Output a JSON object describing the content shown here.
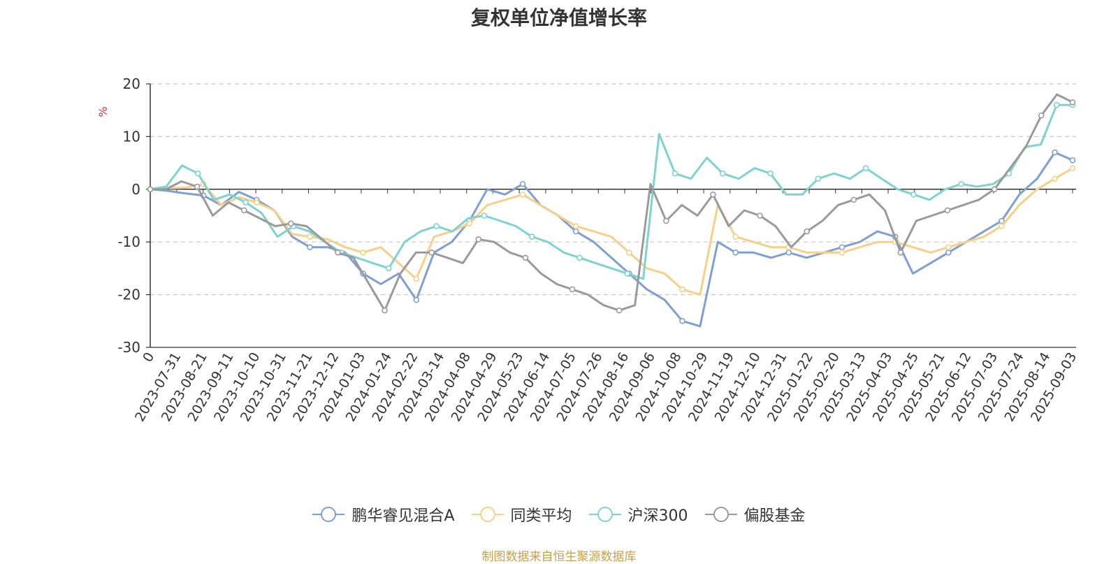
{
  "chart_data": {
    "type": "line",
    "title": "复权单位净值增长率",
    "ylabel": "%",
    "ylim": [
      -30,
      20
    ],
    "yticks": [
      20,
      10,
      0,
      -10,
      -20,
      -30
    ],
    "xlabel_first": "0",
    "xticks": [
      "2023-07-31",
      "2023-08-21",
      "2023-09-11",
      "2023-10-10",
      "2023-10-31",
      "2023-11-21",
      "2023-12-12",
      "2024-01-03",
      "2024-01-24",
      "2024-02-22",
      "2024-03-14",
      "2024-04-08",
      "2024-04-29",
      "2024-05-23",
      "2024-06-14",
      "2024-07-05",
      "2024-07-26",
      "2024-08-16",
      "2024-09-06",
      "2024-10-08",
      "2024-10-29",
      "2024-11-19",
      "2024-12-10",
      "2024-12-31",
      "2025-01-22",
      "2025-02-20",
      "2025-03-13",
      "2025-04-03",
      "2025-04-25",
      "2025-05-21",
      "2025-06-12",
      "2025-07-03",
      "2025-07-24",
      "2025-08-14",
      "2025-09-03"
    ],
    "grid": true,
    "legend_position": "bottom",
    "series": [
      {
        "name": "鹏华睿见混合A",
        "color": "#7f9fd3",
        "values": [
          0,
          -0.3,
          -0.8,
          -1.2,
          -3,
          -0.5,
          -2,
          -4,
          -9,
          -11,
          -11,
          -12,
          -16,
          -18,
          -16,
          -21,
          -12,
          -10,
          -6,
          0,
          -1,
          1,
          -3,
          -5,
          -8,
          -10,
          -13,
          -16,
          -19,
          -21,
          -25,
          -26,
          -10,
          -12,
          -12,
          -13,
          -12,
          -13,
          -12,
          -11,
          -10,
          -8,
          -9,
          -16,
          -14,
          -12,
          -10,
          -8,
          -6,
          -1,
          2,
          7,
          5.5
        ]
      },
      {
        "name": "同类平均",
        "color": "#f6d087",
        "values": [
          0,
          0.2,
          0.3,
          1,
          -3,
          -1.5,
          -2.5,
          -4,
          -8.5,
          -9,
          -9.5,
          -11,
          -12,
          -11,
          -14,
          -17,
          -9,
          -8,
          -6.5,
          -3,
          -2,
          -1,
          -3,
          -5,
          -7,
          -8,
          -9,
          -12,
          -15,
          -16,
          -19,
          -20,
          -3,
          -9,
          -10,
          -11,
          -11,
          -12,
          -12,
          -12,
          -11,
          -10,
          -10,
          -11,
          -12,
          -11,
          -10,
          -9,
          -7,
          -3,
          0,
          2,
          4
        ]
      },
      {
        "name": "沪深300",
        "color": "#7dd3d1",
        "values": [
          0,
          0.5,
          4.5,
          3,
          -2,
          -1,
          -2.5,
          -4.5,
          -9,
          -7,
          -8,
          -10,
          -12,
          -13,
          -14,
          -15,
          -10,
          -8,
          -7,
          -8,
          -5.5,
          -5,
          -6,
          -7,
          -9,
          -10,
          -12,
          -13,
          -14,
          -15,
          -16,
          -17,
          10.5,
          3,
          2,
          6,
          3,
          2,
          4,
          3,
          -1,
          -1,
          2,
          3,
          2,
          4,
          2,
          0,
          -1,
          -2,
          0,
          1,
          0.5,
          1,
          3,
          8,
          8.5,
          16,
          16
        ]
      },
      {
        "name": "偏股基金",
        "color": "#9a9a9a",
        "values": [
          0,
          0,
          1.5,
          0.5,
          -5,
          -2.5,
          -4,
          -5.5,
          -7,
          -6.5,
          -7,
          -9.5,
          -12,
          -13,
          -18,
          -23,
          -16,
          -12,
          -12,
          -13,
          -14,
          -9.5,
          -10,
          -12,
          -13,
          -16,
          -18,
          -19,
          -20,
          -22,
          -23,
          -22,
          1,
          -6,
          -3,
          -5,
          -1,
          -7,
          -4,
          -5,
          -7,
          -11,
          -8,
          -6,
          -3,
          -2,
          -1,
          -4,
          -12,
          -6,
          -5,
          -4,
          -3,
          -2,
          0,
          4,
          8,
          14,
          18,
          16.5
        ]
      }
    ]
  },
  "source_note": "制图数据来自恒生聚源数据库"
}
